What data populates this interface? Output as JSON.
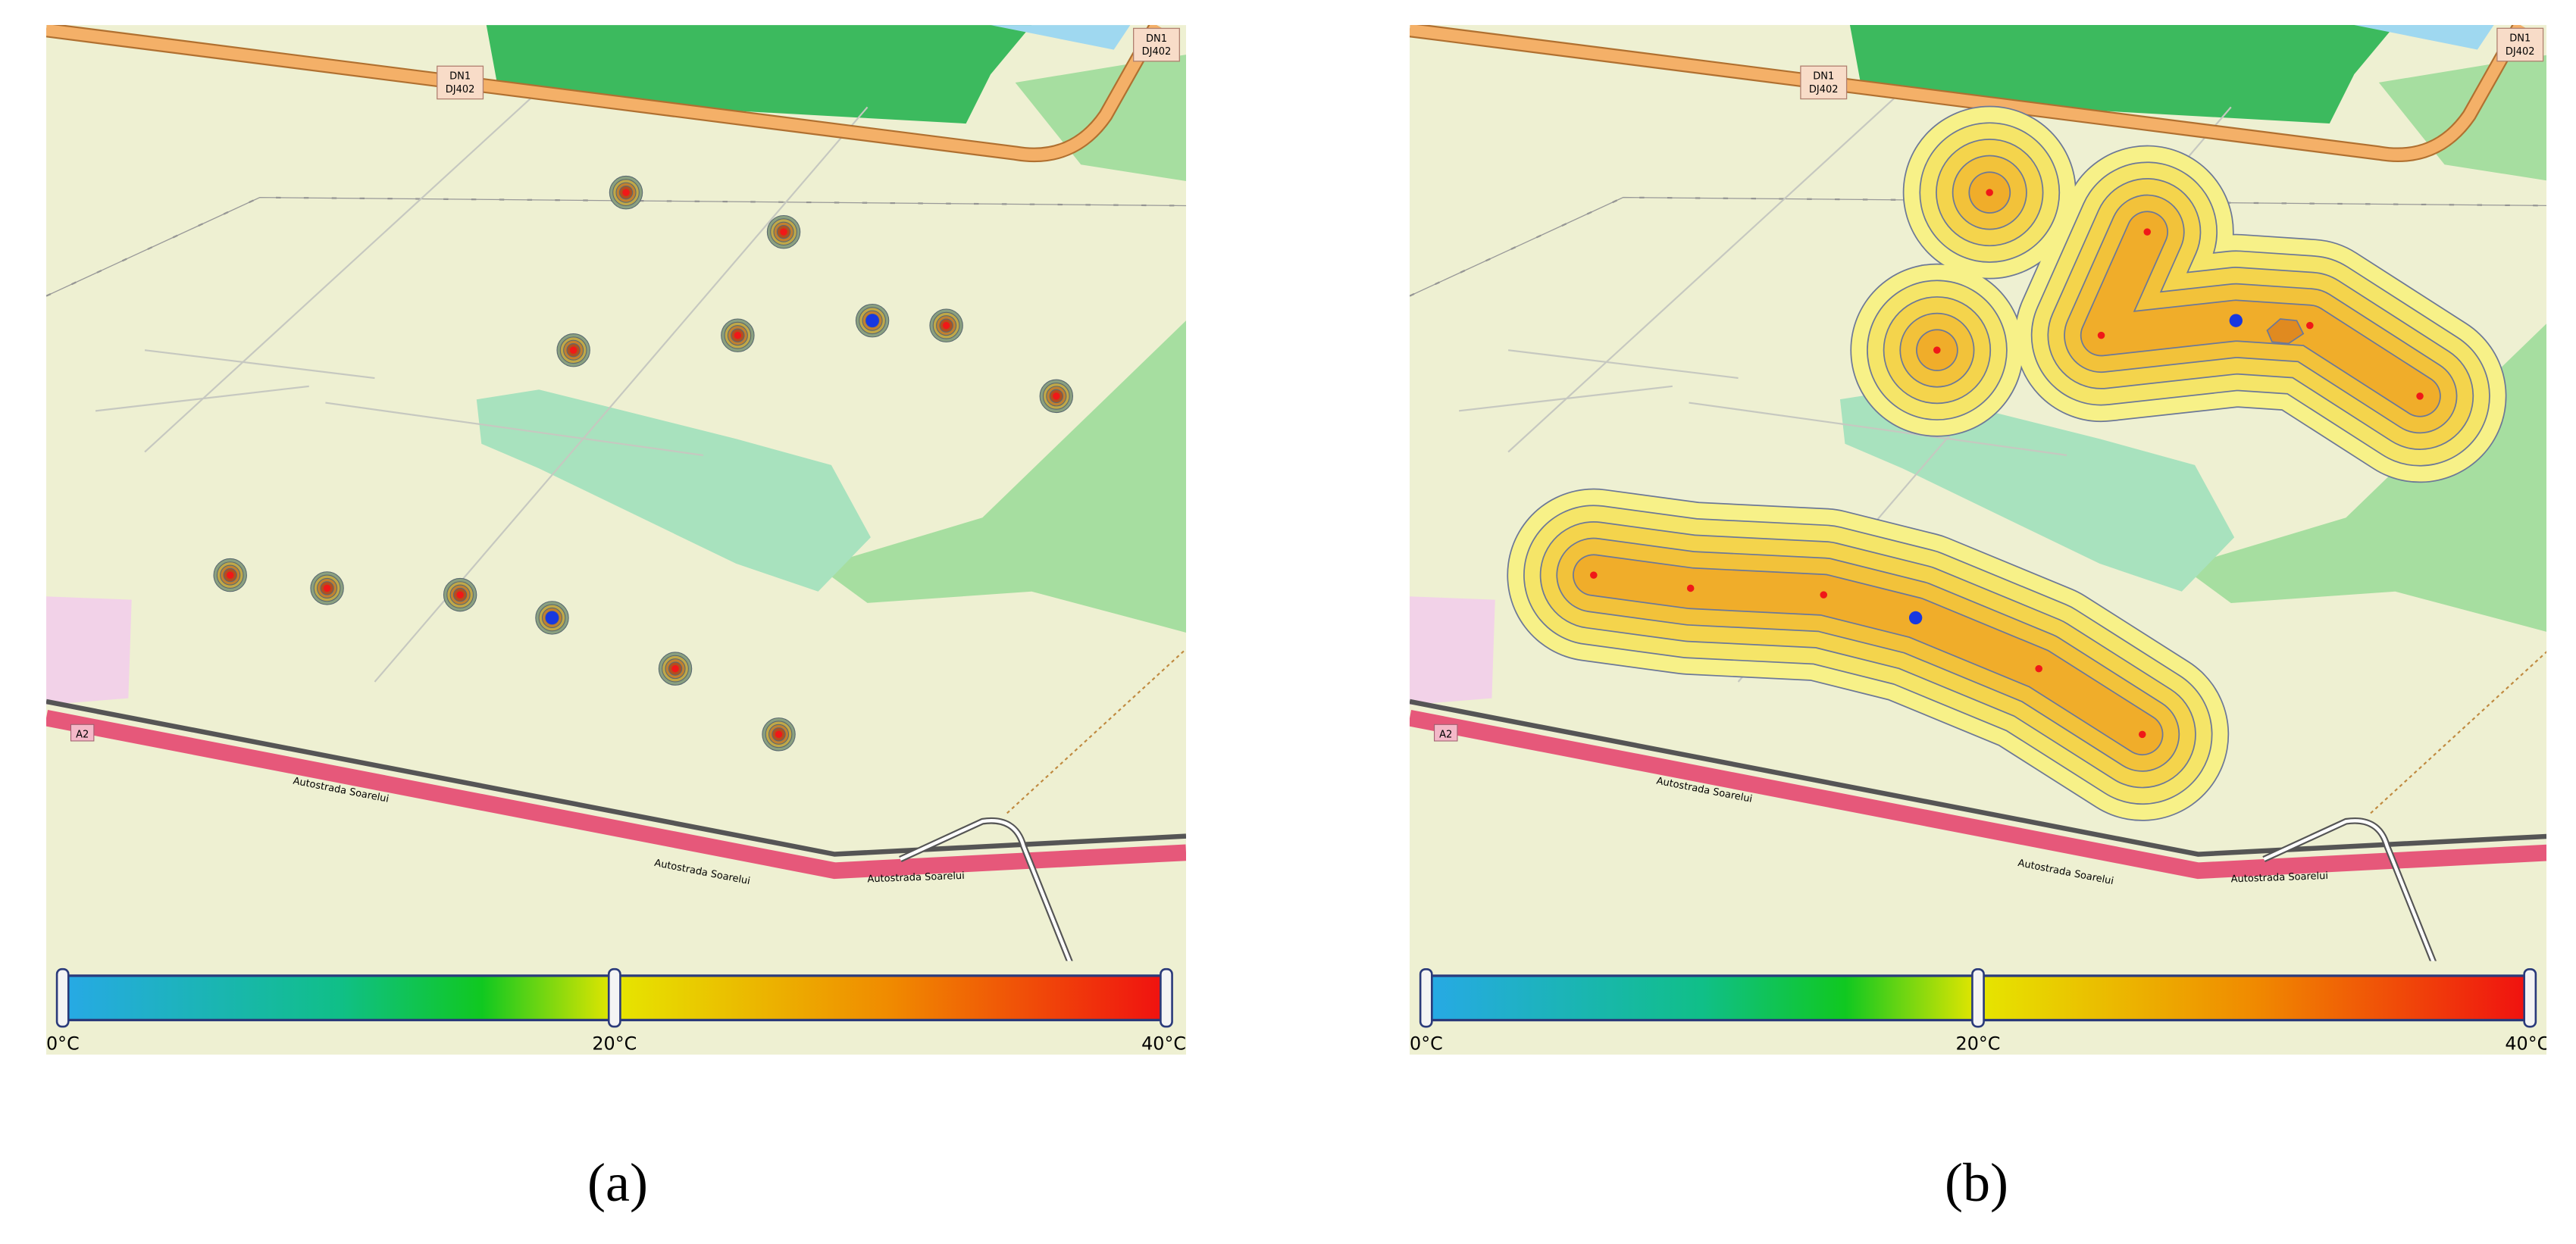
{
  "panels": [
    {
      "caption": "(a)",
      "map_labels": {
        "road_shield": [
          "DN1",
          "DJ402"
        ],
        "motorway_shield": "A2",
        "motorway_name": "Autostrada Soarelui"
      },
      "colorbar": {
        "labels": [
          "0°C",
          "20°C",
          "40°C"
        ]
      }
    },
    {
      "caption": "(b)",
      "map_labels": {
        "road_shield": [
          "DN1",
          "DJ402"
        ],
        "motorway_shield": "A2",
        "motorway_name": "Autostrada Soarelui"
      },
      "colorbar": {
        "labels": [
          "0°C",
          "20°C",
          "40°C"
        ]
      }
    }
  ]
}
